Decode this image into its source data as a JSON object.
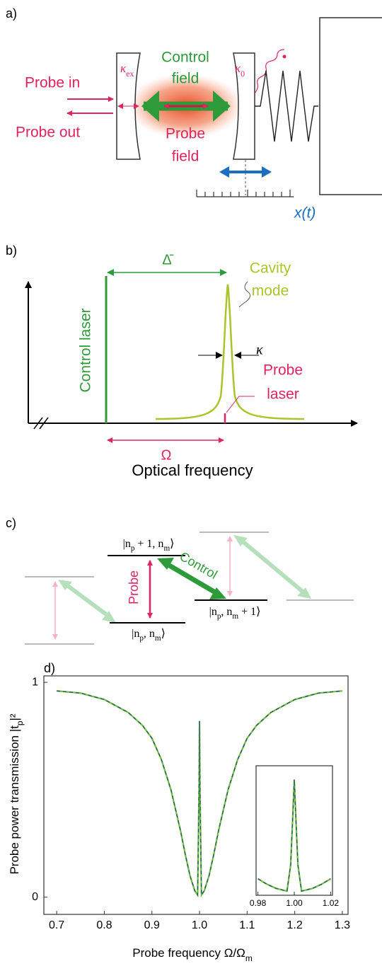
{
  "panel_a": {
    "label": "a)",
    "probe_in": "Probe in",
    "probe_out": "Probe out",
    "control_1": "Control",
    "control_2": "field",
    "probe_1": "Probe",
    "probe_2": "field",
    "kappa_ex": [
      "κ",
      "ex"
    ],
    "kappa_0": [
      "κ",
      "0"
    ],
    "displacement": "x(t)"
  },
  "panel_b": {
    "label": "b)",
    "detuning": "Δ̄",
    "cavity_1": "Cavity",
    "cavity_2": "mode",
    "control_laser": "Control laser",
    "kappa": "κ",
    "probe_1": "Probe",
    "probe_2": "laser",
    "omega": "Ω",
    "x_label": "Optical frequency"
  },
  "panel_c": {
    "label": "c)",
    "ket_top": [
      "|n",
      "p",
      " + 1, n",
      "m",
      "⟩"
    ],
    "ket_bottom": [
      "|n",
      "p",
      ", n",
      "m",
      "⟩"
    ],
    "ket_right": [
      "|n",
      "p",
      ", n",
      "m",
      " + 1⟩"
    ],
    "probe": "Probe",
    "control": "Control"
  },
  "chart_data": {
    "type": "line",
    "label": "d)",
    "y_label": [
      "Probe power transmission |t",
      "p",
      "|²"
    ],
    "x_label": [
      "Probe frequency Ω/Ω",
      "m"
    ],
    "x": [
      0.7,
      0.75,
      0.8,
      0.85,
      0.88,
      0.9,
      0.92,
      0.94,
      0.96,
      0.97,
      0.98,
      0.99,
      0.996,
      0.999,
      1.0,
      1.001,
      1.004,
      1.01,
      1.02,
      1.03,
      1.04,
      1.06,
      1.08,
      1.1,
      1.12,
      1.15,
      1.2,
      1.25,
      1.3
    ],
    "values": [
      0.96,
      0.95,
      0.92,
      0.86,
      0.8,
      0.74,
      0.64,
      0.5,
      0.31,
      0.2,
      0.1,
      0.03,
      0.01,
      0.5,
      0.82,
      0.5,
      0.01,
      0.03,
      0.1,
      0.2,
      0.31,
      0.5,
      0.64,
      0.74,
      0.8,
      0.86,
      0.92,
      0.95,
      0.96
    ],
    "color": "#6cbf3c",
    "dash_color": "#2a4a7a",
    "xlim": [
      0.673,
      1.312
    ],
    "ylim": [
      -0.08,
      1.03
    ],
    "xticks": [
      0.7,
      0.8,
      0.9,
      {
        "value": 1,
        "label": "1.0"
      },
      1.1,
      1.2,
      1.3
    ],
    "yticks": [
      0,
      1
    ],
    "inset": {
      "x": [
        0.98,
        0.985,
        0.99,
        0.993,
        0.996,
        0.998,
        0.999,
        1.0,
        1.001,
        1.002,
        1.004,
        1.007,
        1.01,
        1.015,
        1.02
      ],
      "values": [
        0.1,
        0.06,
        0.03,
        0.02,
        0.01,
        0.2,
        0.5,
        0.82,
        0.5,
        0.2,
        0.01,
        0.02,
        0.03,
        0.06,
        0.1
      ],
      "xlim": [
        0.979,
        1.021
      ],
      "ylim": [
        -0.02,
        0.92
      ],
      "xticks": [
        0.98,
        {
          "value": 1,
          "label": "1.00"
        },
        1.02
      ]
    }
  }
}
